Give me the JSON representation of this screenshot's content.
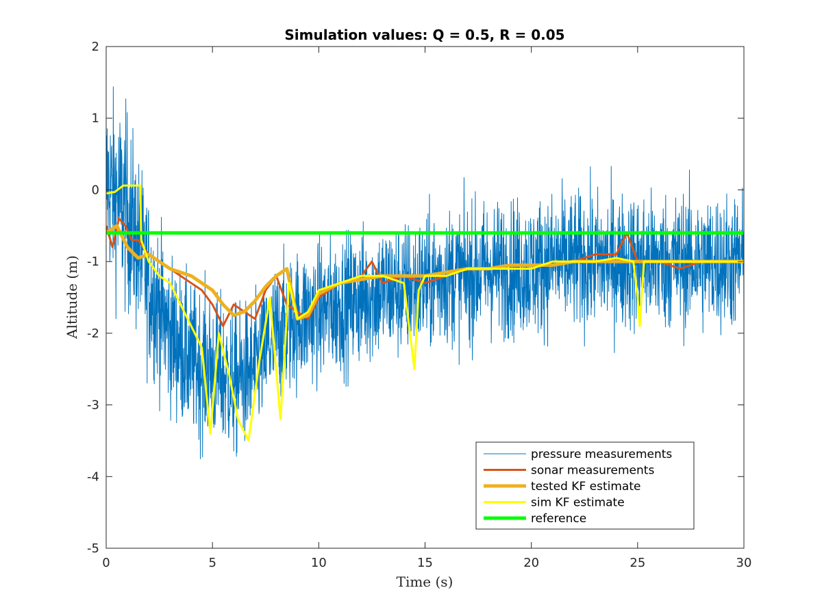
{
  "chart_data": {
    "type": "line",
    "title": "Simulation values: Q = 0.5, R = 0.05",
    "xlabel": "Time (s)",
    "ylabel": "Altitude (m)",
    "xlim": [
      0,
      30
    ],
    "ylim": [
      -5,
      2
    ],
    "xticks": [
      "0",
      "5",
      "10",
      "15",
      "20",
      "25",
      "30"
    ],
    "yticks": [
      "-5",
      "-4",
      "-3",
      "-2",
      "-1",
      "0",
      "1",
      "2"
    ],
    "grid": false,
    "legend_position": "bottom-right",
    "series": [
      {
        "name": "pressure measurements",
        "color": "#0072BD",
        "style": "noisy",
        "x": [
          0,
          1,
          2,
          3,
          4,
          5,
          6,
          7,
          8,
          9,
          10,
          11,
          12,
          13,
          14,
          15,
          16,
          17,
          18,
          19,
          20,
          21,
          22,
          23,
          24,
          25,
          26,
          27,
          28,
          29,
          30
        ],
        "values": [
          0.1,
          -0.3,
          -1.3,
          -2.0,
          -2.4,
          -2.5,
          -2.7,
          -2.5,
          -2.0,
          -1.8,
          -1.7,
          -1.6,
          -1.5,
          -1.4,
          -1.4,
          -1.3,
          -1.2,
          -1.2,
          -1.1,
          -1.1,
          -1.1,
          -1.0,
          -1.0,
          -1.0,
          -1.0,
          -1.0,
          -1.0,
          -1.0,
          -1.0,
          -1.0,
          -1.0
        ],
        "noise_amplitude": [
          1.2,
          1.3,
          1.1,
          1.0,
          1.0,
          1.0,
          1.0,
          0.9,
          0.9,
          0.9,
          0.9,
          0.9,
          0.9,
          0.9,
          0.9,
          0.9,
          0.9,
          0.9,
          0.9,
          0.9,
          0.9,
          0.9,
          0.9,
          0.9,
          0.9,
          0.9,
          0.9,
          0.9,
          0.9,
          0.9,
          0.9
        ]
      },
      {
        "name": "sonar measurements",
        "color": "#D95319",
        "style": "medium",
        "x": [
          0,
          0.3,
          0.6,
          0.9,
          1.2,
          1.5,
          2.0,
          2.5,
          3.0,
          3.5,
          4.0,
          4.5,
          5.0,
          5.5,
          6.0,
          6.5,
          7.0,
          7.5,
          8.0,
          8.5,
          9.0,
          9.5,
          10.0,
          11.0,
          12.0,
          12.5,
          13.0,
          14.0,
          15.0,
          16.0,
          17.0,
          18.0,
          19.0,
          20.0,
          21.0,
          22.0,
          23.0,
          24.0,
          24.5,
          25.0,
          26.0,
          27.0,
          28.0,
          29.0,
          30.0
        ],
        "values": [
          -0.5,
          -0.8,
          -0.4,
          -0.5,
          -0.7,
          -0.7,
          -0.9,
          -1.0,
          -1.1,
          -1.2,
          -1.3,
          -1.4,
          -1.6,
          -1.9,
          -1.6,
          -1.7,
          -1.8,
          -1.4,
          -1.2,
          -1.6,
          -1.7,
          -1.8,
          -1.5,
          -1.3,
          -1.2,
          -1.0,
          -1.3,
          -1.2,
          -1.3,
          -1.2,
          -1.1,
          -1.1,
          -1.1,
          -1.1,
          -1.0,
          -1.0,
          -0.9,
          -0.9,
          -0.6,
          -1.0,
          -1.0,
          -1.1,
          -1.0,
          -1.0,
          -1.0
        ]
      },
      {
        "name": "tested KF estimate",
        "color": "#EDB120",
        "style": "thick",
        "x": [
          0,
          0.5,
          1.0,
          1.5,
          2.0,
          2.5,
          3.0,
          3.5,
          4.0,
          4.5,
          5.0,
          5.5,
          6.0,
          6.5,
          7.0,
          7.5,
          8.0,
          8.5,
          9.0,
          9.5,
          10.0,
          11.0,
          12.0,
          13.0,
          14.0,
          15.0,
          16.0,
          17.0,
          18.0,
          19.0,
          20.0,
          21.0,
          22.0,
          23.0,
          24.0,
          25.0,
          26.0,
          27.0,
          28.0,
          29.0,
          30.0
        ],
        "values": [
          -0.6,
          -0.5,
          -0.8,
          -0.95,
          -0.9,
          -1.0,
          -1.1,
          -1.15,
          -1.2,
          -1.3,
          -1.4,
          -1.6,
          -1.75,
          -1.7,
          -1.55,
          -1.35,
          -1.2,
          -1.1,
          -1.8,
          -1.75,
          -1.45,
          -1.3,
          -1.25,
          -1.2,
          -1.2,
          -1.2,
          -1.15,
          -1.1,
          -1.1,
          -1.05,
          -1.05,
          -1.05,
          -1.0,
          -1.0,
          -1.0,
          -1.0,
          -1.0,
          -1.0,
          -1.0,
          -1.0,
          -1.0
        ]
      },
      {
        "name": "sim KF estimate",
        "color": "#FFFF00",
        "style": "medium",
        "x": [
          0,
          0.4,
          0.8,
          0.85,
          1.0,
          1.6,
          1.65,
          2.0,
          2.5,
          3.0,
          3.5,
          4.0,
          4.5,
          4.9,
          5.3,
          5.8,
          6.2,
          6.7,
          7.2,
          7.7,
          8.2,
          8.6,
          9.0,
          9.5,
          10.0,
          11.0,
          12.0,
          13.0,
          14.0,
          14.5,
          14.7,
          15.0,
          16.0,
          17.0,
          18.0,
          19.0,
          20.0,
          21.0,
          22.0,
          23.0,
          24.0,
          24.8,
          25.0,
          25.1,
          25.3,
          26.0,
          27.0,
          28.0,
          29.0,
          30.0
        ],
        "values": [
          -0.05,
          -0.03,
          0.06,
          0.06,
          0.06,
          0.06,
          -0.7,
          -1.0,
          -1.2,
          -1.3,
          -1.6,
          -1.9,
          -2.2,
          -3.4,
          -2.0,
          -2.6,
          -3.2,
          -3.5,
          -2.4,
          -1.5,
          -3.2,
          -1.3,
          -1.8,
          -1.7,
          -1.4,
          -1.3,
          -1.2,
          -1.2,
          -1.3,
          -2.5,
          -1.4,
          -1.2,
          -1.2,
          -1.1,
          -1.1,
          -1.1,
          -1.1,
          -1.0,
          -1.0,
          -1.0,
          -0.95,
          -1.0,
          -1.5,
          -1.9,
          -1.0,
          -1.0,
          -1.0,
          -1.0,
          -1.0,
          -1.0
        ]
      },
      {
        "name": "reference",
        "color": "#00FF00",
        "style": "thick",
        "x": [
          0,
          30
        ],
        "values": [
          -0.6,
          -0.6
        ]
      }
    ]
  }
}
